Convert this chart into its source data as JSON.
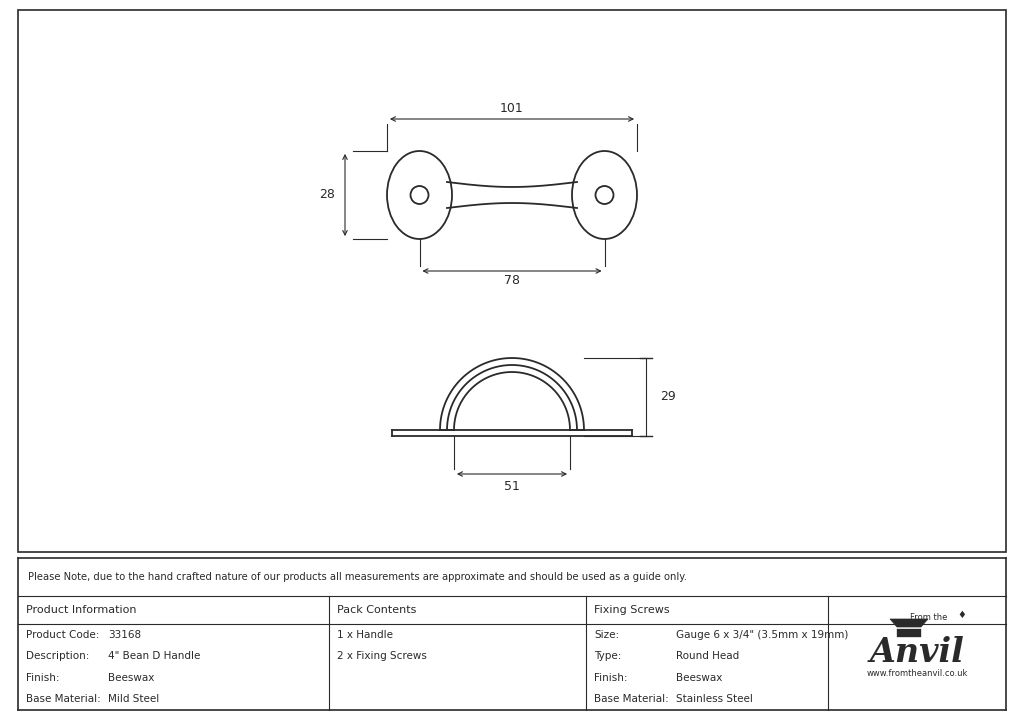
{
  "bg_color": "#ffffff",
  "line_color": "#2a2a2a",
  "note_text": "Please Note, due to the hand crafted nature of our products all measurements are approximate and should be used as a guide only.",
  "table": {
    "col1_header": "Product Information",
    "col2_header": "Pack Contents",
    "col3_header": "Fixing Screws",
    "col1_rows": [
      [
        "Product Code:",
        "33168"
      ],
      [
        "Description:",
        "4\" Bean D Handle"
      ],
      [
        "Finish:",
        "Beeswax"
      ],
      [
        "Base Material:",
        "Mild Steel"
      ]
    ],
    "col2_rows": [
      "1 x Handle",
      "2 x Fixing Screws"
    ],
    "col3_rows": [
      [
        "Size:",
        "Gauge 6 x 3/4\" (3.5mm x 19mm)"
      ],
      [
        "Type:",
        "Round Head"
      ],
      [
        "Finish:",
        "Beeswax"
      ],
      [
        "Base Material:",
        "Stainless Steel"
      ]
    ]
  },
  "dim_101": "101",
  "dim_28": "28",
  "dim_78": "78",
  "dim_29": "29",
  "dim_51": "51"
}
